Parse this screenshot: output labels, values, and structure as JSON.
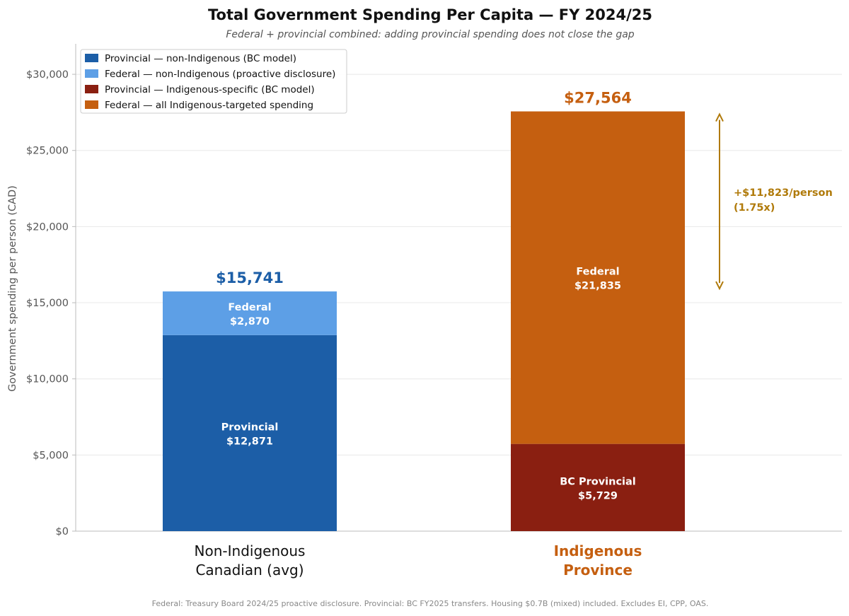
{
  "chart_data": {
    "type": "bar",
    "stacked": true,
    "title": "Total Government Spending Per Capita — FY 2024/25",
    "subtitle": "Federal + provincial combined: adding provincial spending does not close the gap",
    "ylabel": "Government spending per person (CAD)",
    "xlabel": "",
    "ylim": [
      0,
      32000
    ],
    "yticks": [
      0,
      5000,
      10000,
      15000,
      20000,
      25000,
      30000
    ],
    "ytick_labels": [
      "$0",
      "$5,000",
      "$10,000",
      "$15,000",
      "$20,000",
      "$25,000",
      "$30,000"
    ],
    "grid": true,
    "legend_position": "top-left",
    "categories": [
      {
        "line1": "Non-Indigenous",
        "line2": "Canadian (avg)",
        "color": "#111111"
      },
      {
        "line1": "Indigenous",
        "line2": "Province",
        "color": "#c55f10"
      }
    ],
    "bars": [
      {
        "total": 15741,
        "total_label": "$15,741",
        "total_color": "#1c5ea7",
        "segments": [
          {
            "series": "Provincial — non-Indigenous (BC model)",
            "value": 12871,
            "color": "#1c5ea7",
            "label1": "Provincial",
            "label2": "$12,871"
          },
          {
            "series": "Federal — non-Indigenous (proactive disclosure)",
            "value": 2870,
            "color": "#5d9fe6",
            "label1": "Federal",
            "label2": "$2,870"
          }
        ]
      },
      {
        "total": 27564,
        "total_label": "$27,564",
        "total_color": "#c55f10",
        "segments": [
          {
            "series": "Provincial — Indigenous-specific (BC model)",
            "value": 5729,
            "color": "#8a1f11",
            "label1": "BC Provincial",
            "label2": "$5,729"
          },
          {
            "series": "Federal — all Indigenous-targeted spending",
            "value": 21835,
            "color": "#c55f10",
            "label1": "Federal",
            "label2": "$21,835"
          }
        ]
      }
    ],
    "legend": [
      {
        "label": "Provincial — non-Indigenous (BC model)",
        "color": "#1c5ea7"
      },
      {
        "label": "Federal — non-Indigenous (proactive disclosure)",
        "color": "#5d9fe6"
      },
      {
        "label": "Provincial — Indigenous-specific (BC model)",
        "color": "#8a1f11"
      },
      {
        "label": "Federal — all Indigenous-targeted spending",
        "color": "#c55f10"
      }
    ],
    "annotation": {
      "from": 15741,
      "to": 27564,
      "line1": "+$11,823/person",
      "line2": "(1.75x)",
      "color": "#b07a0a"
    },
    "footnote": "Federal: Treasury Board 2024/25 proactive disclosure.  Provincial: BC FY2025 transfers.  Housing $0.7B (mixed) included.  Excludes EI, CPP, OAS."
  }
}
